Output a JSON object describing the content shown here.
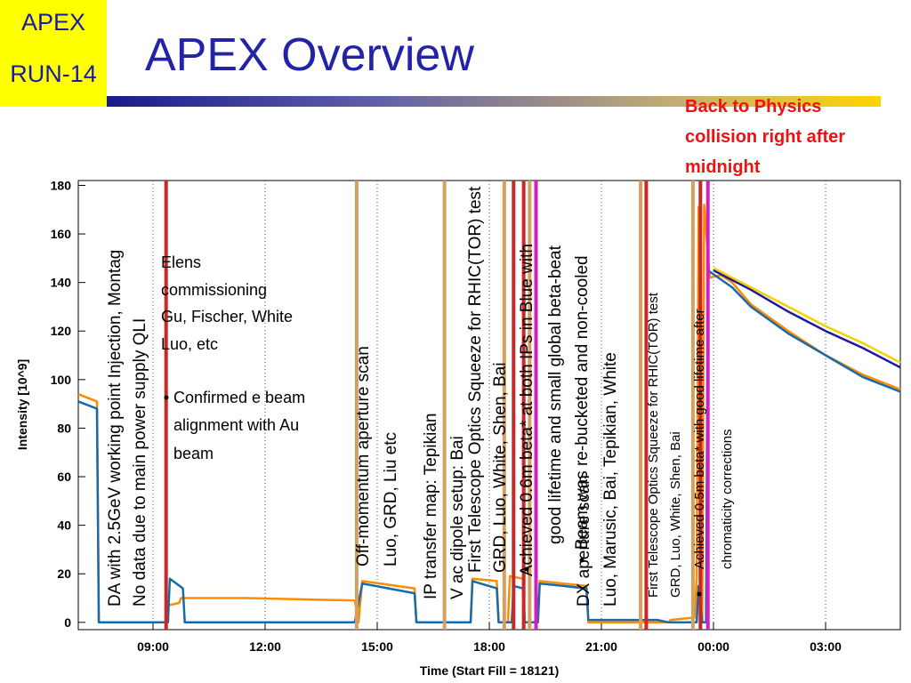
{
  "header": {
    "badge_line1": "APEX",
    "badge_line2": "RUN-14",
    "title": "APEX Overview",
    "note": "Back to Physics collision right after midnight"
  },
  "colors": {
    "badge_bg": "#ffff00",
    "title": "#2222aa",
    "note": "#ee1111",
    "orange": "#ff8c00",
    "blue": "#1a6aa8",
    "navy": "#1a1aa0",
    "yellow": "#f2d200",
    "red_marker": "#c82828",
    "tan_marker": "#d4a060",
    "magenta_marker": "#d020c0"
  },
  "chart_data": {
    "type": "line",
    "xlabel": "Time (Start Fill = 18121)",
    "ylabel": "Intensity [10^9]",
    "xlim": [
      7.0,
      29.0
    ],
    "ylim": [
      -3,
      182
    ],
    "x_tick_labels": [
      {
        "x": 9,
        "label": "09:00"
      },
      {
        "x": 12,
        "label": "12:00"
      },
      {
        "x": 15,
        "label": "15:00"
      },
      {
        "x": 18,
        "label": "18:00"
      },
      {
        "x": 21,
        "label": "21:00"
      },
      {
        "x": 24,
        "label": "00:00"
      },
      {
        "x": 27,
        "label": "03:00"
      }
    ],
    "y_ticks": [
      0,
      20,
      40,
      60,
      80,
      100,
      120,
      140,
      160,
      180
    ],
    "grid": "dotted vertical lines at x ticks",
    "series": [
      {
        "color": "#ff8c00",
        "points": [
          [
            7.0,
            94
          ],
          [
            7.5,
            91
          ],
          [
            7.55,
            0
          ],
          [
            9.4,
            0
          ],
          [
            9.4,
            7
          ],
          [
            9.7,
            8
          ],
          [
            9.75,
            10
          ],
          [
            11.5,
            10
          ],
          [
            14.4,
            9
          ],
          [
            14.5,
            0
          ],
          [
            14.6,
            17
          ],
          [
            16.0,
            14
          ],
          [
            16.05,
            0
          ],
          [
            17.5,
            0
          ],
          [
            17.55,
            18
          ],
          [
            18.2,
            17
          ],
          [
            18.25,
            0
          ],
          [
            18.5,
            0
          ],
          [
            18.55,
            19
          ],
          [
            18.9,
            18
          ],
          [
            18.95,
            0
          ],
          [
            19.3,
            0
          ],
          [
            19.35,
            17
          ],
          [
            20.6,
            15
          ],
          [
            20.65,
            0
          ],
          [
            22.8,
            0
          ],
          [
            22.85,
            1
          ],
          [
            23.5,
            2
          ],
          [
            23.55,
            19
          ],
          [
            23.6,
            171
          ],
          [
            23.65,
            0
          ],
          [
            23.7,
            0
          ],
          [
            23.75,
            172
          ],
          [
            23.9,
            142
          ],
          [
            24.2,
            143
          ],
          [
            24.5,
            140
          ],
          [
            25.0,
            131
          ],
          [
            26.0,
            120
          ],
          [
            27.0,
            110
          ],
          [
            28.0,
            102
          ],
          [
            29.0,
            96
          ]
        ]
      },
      {
        "color": "#1a6aa8",
        "points": [
          [
            7.0,
            91
          ],
          [
            7.5,
            88
          ],
          [
            7.55,
            0
          ],
          [
            9.4,
            0
          ],
          [
            9.45,
            18
          ],
          [
            9.8,
            14
          ],
          [
            9.85,
            0
          ],
          [
            11.5,
            0
          ],
          [
            14.4,
            0
          ],
          [
            14.6,
            16
          ],
          [
            16.0,
            12
          ],
          [
            16.05,
            0
          ],
          [
            17.5,
            0
          ],
          [
            17.55,
            17
          ],
          [
            18.2,
            14
          ],
          [
            18.25,
            0
          ],
          [
            18.6,
            0
          ],
          [
            18.65,
            15
          ],
          [
            18.9,
            14
          ],
          [
            18.95,
            0
          ],
          [
            19.3,
            0
          ],
          [
            19.35,
            16
          ],
          [
            20.6,
            14
          ],
          [
            20.65,
            1
          ],
          [
            22.5,
            1
          ],
          [
            22.8,
            0
          ],
          [
            23.55,
            0
          ],
          [
            23.6,
            15
          ],
          [
            23.7,
            0
          ],
          [
            23.8,
            0
          ],
          [
            23.85,
            145
          ],
          [
            24.5,
            138
          ],
          [
            25.0,
            130
          ],
          [
            26.0,
            119
          ],
          [
            27.0,
            110
          ],
          [
            28.0,
            101
          ],
          [
            29.0,
            95
          ]
        ]
      },
      {
        "color": "#1a1aa0",
        "points": [
          [
            24.0,
            145
          ],
          [
            25.0,
            137
          ],
          [
            26.0,
            128
          ],
          [
            27.0,
            120
          ],
          [
            28.0,
            113
          ],
          [
            29.0,
            105
          ]
        ]
      },
      {
        "color": "#f2d200",
        "points": [
          [
            24.0,
            146
          ],
          [
            25.0,
            138
          ],
          [
            26.0,
            130
          ],
          [
            27.0,
            122
          ],
          [
            28.0,
            115
          ],
          [
            29.0,
            107
          ]
        ]
      }
    ],
    "markers": [
      {
        "x": 9.35,
        "color": "#c82828"
      },
      {
        "x": 14.45,
        "color": "#d4a060"
      },
      {
        "x": 16.8,
        "color": "#d4a060"
      },
      {
        "x": 18.4,
        "color": "#d4a060"
      },
      {
        "x": 18.65,
        "color": "#c82828"
      },
      {
        "x": 18.92,
        "color": "#c82828"
      },
      {
        "x": 19.08,
        "color": "#d4a060"
      },
      {
        "x": 19.25,
        "color": "#d020c0"
      },
      {
        "x": 22.05,
        "color": "#d4a060"
      },
      {
        "x": 22.2,
        "color": "#c82828"
      },
      {
        "x": 23.45,
        "color": "#d4a060"
      },
      {
        "x": 23.65,
        "color": "#c82828"
      },
      {
        "x": 23.85,
        "color": "#d020c0"
      }
    ],
    "annotations": {
      "elens_lines": [
        "Elens",
        "commissioning",
        "Gu, Fischer, White",
        "Luo, etc"
      ],
      "elens_bullet": [
        "Confirmed e beam",
        "alignment with Au",
        "beam"
      ],
      "vertical": [
        "DA with 2.5GeV working point Injection, Montag",
        "No data due to main power supply QLI",
        "Off-momentum aperture scan",
        "Luo, GRD, Liu etc",
        "IP transfer map: Tepikian",
        "V ac dipole setup: Bai",
        "First Telescope Optics Squeeze for RHIC(TOR) test",
        "GRD, Luo, White, Shen, Bai",
        "Achieved 0.6m beta* at both IPs in Blue with",
        "good lifetime and small global beta-beat",
        "Beam was re-bucketed and non-cooled",
        "DX aperture scan",
        "Luo, Marusic, Bai, Tepikian, White",
        "First Telescope Optics Squeeze for RHIC(TOR) test",
        "GRD, Luo, White, Shen, Bai",
        "Achieved 0.5m beta* with good lifetime after",
        "chromaticity corrections"
      ]
    }
  }
}
